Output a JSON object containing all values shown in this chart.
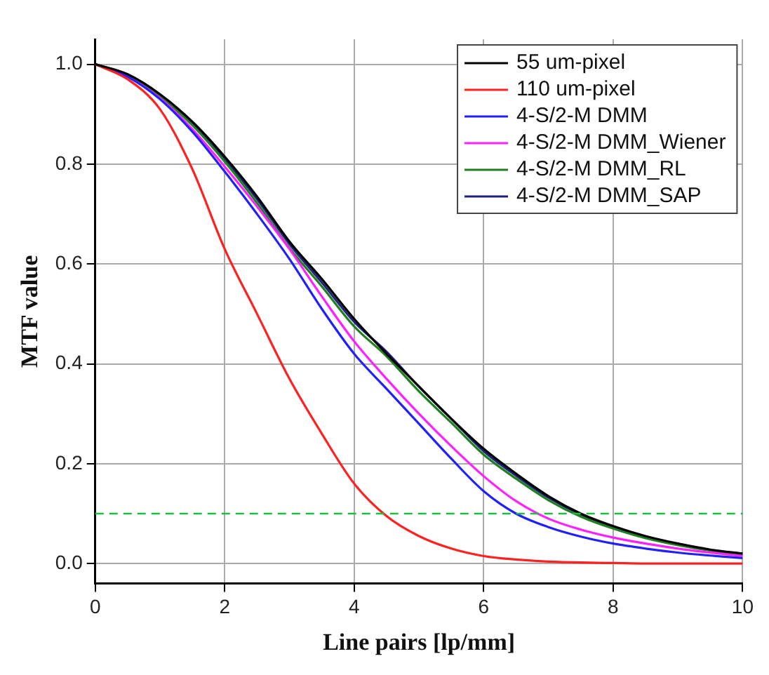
{
  "chart_data": {
    "type": "line",
    "xlabel": "Line pairs [lp/mm]",
    "ylabel": "MTF value",
    "x": [
      0,
      0.5,
      1,
      1.5,
      2,
      2.5,
      3,
      3.5,
      4,
      4.5,
      5,
      5.5,
      6,
      6.5,
      7,
      7.5,
      8,
      8.5,
      9,
      9.5,
      10
    ],
    "series": [
      {
        "name": "55 um-pixel",
        "color": "#000000",
        "values": [
          1,
          0.98,
          0.94,
          0.885,
          0.815,
          0.735,
          0.645,
          0.57,
          0.49,
          0.42,
          0.355,
          0.29,
          0.23,
          0.18,
          0.135,
          0.1,
          0.075,
          0.055,
          0.04,
          0.028,
          0.02
        ]
      },
      {
        "name": "110 um-pixel",
        "color": "#ff2020",
        "values": [
          1,
          0.97,
          0.91,
          0.79,
          0.63,
          0.5,
          0.37,
          0.26,
          0.16,
          0.095,
          0.055,
          0.03,
          0.015,
          0.008,
          0.004,
          0.002,
          0.001,
          0,
          0,
          0,
          0
        ]
      },
      {
        "name": "4-S/2-M DMM",
        "color": "#2020ff",
        "values": [
          1,
          0.975,
          0.93,
          0.865,
          0.785,
          0.7,
          0.61,
          0.51,
          0.42,
          0.35,
          0.28,
          0.21,
          0.145,
          0.1,
          0.073,
          0.054,
          0.04,
          0.03,
          0.022,
          0.016,
          0.011
        ]
      },
      {
        "name": "4-S/2-M DMM_Wiener",
        "color": "#ff20ff",
        "values": [
          1,
          0.975,
          0.932,
          0.87,
          0.795,
          0.715,
          0.63,
          0.535,
          0.445,
          0.37,
          0.3,
          0.235,
          0.175,
          0.125,
          0.09,
          0.068,
          0.052,
          0.04,
          0.03,
          0.022,
          0.015
        ]
      },
      {
        "name": "4-S/2-M DMM_RL",
        "color": "#208020",
        "values": [
          1,
          0.978,
          0.935,
          0.878,
          0.805,
          0.722,
          0.632,
          0.555,
          0.475,
          0.415,
          0.345,
          0.282,
          0.218,
          0.17,
          0.127,
          0.094,
          0.07,
          0.051,
          0.037,
          0.026,
          0.018
        ]
      },
      {
        "name": "4-S/2-M DMM_SAP",
        "color": "#202080",
        "values": [
          1,
          0.979,
          0.938,
          0.882,
          0.81,
          0.73,
          0.64,
          0.563,
          0.484,
          0.424,
          0.354,
          0.29,
          0.225,
          0.176,
          0.132,
          0.098,
          0.073,
          0.053,
          0.039,
          0.027,
          0.019
        ]
      }
    ],
    "xlim": [
      0,
      10
    ],
    "xticks": [
      0,
      2,
      4,
      6,
      8,
      10
    ],
    "ylim": [
      -0.04,
      1.05
    ],
    "yticks": [
      {
        "value": 0,
        "label": "0.0"
      },
      {
        "value": 0.2,
        "label": "0.2"
      },
      {
        "value": 0.4,
        "label": "0.4"
      },
      {
        "value": 0.6,
        "label": "0.6"
      },
      {
        "value": 0.8,
        "label": "0.8"
      },
      {
        "value": 1,
        "label": "1.0"
      }
    ],
    "ref_lines": [
      {
        "axis": "y",
        "value": 0.1,
        "color": "#22bb44",
        "line_style": "dashed"
      }
    ],
    "grid": true,
    "legend": "top right",
    "marker": "none",
    "line_style": "solid"
  }
}
